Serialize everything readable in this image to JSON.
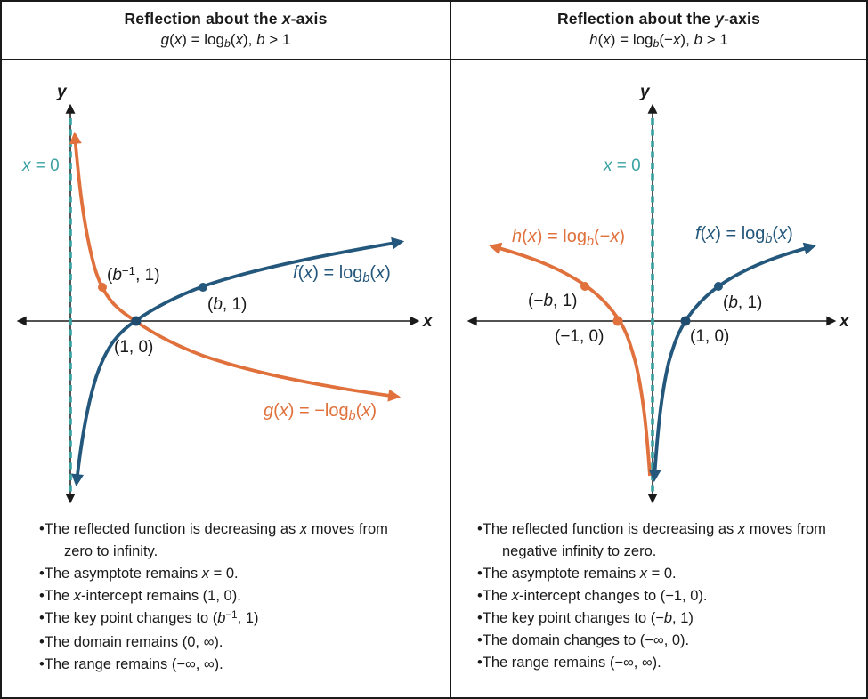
{
  "colors": {
    "blue": "#24577C",
    "orange": "#E0713C",
    "teal": "#3BA2A2",
    "axis": "#1A1A1A"
  },
  "left_panel": {
    "title": [
      {
        "t": "Reflection about the "
      },
      {
        "t": "x",
        "i": 1
      },
      {
        "t": "-axis"
      }
    ],
    "subtitle": [
      {
        "t": "g",
        "i": 1
      },
      {
        "t": "("
      },
      {
        "t": "x",
        "i": 1
      },
      {
        "t": ") = log"
      },
      {
        "t": "b",
        "i": 1,
        "v": "sub"
      },
      {
        "t": "("
      },
      {
        "t": "x",
        "i": 1
      },
      {
        "t": "), "
      },
      {
        "t": "b",
        "i": 1
      },
      {
        "t": " > 1"
      }
    ],
    "graph": {
      "y_axis_label": "y",
      "x_axis_label": "x",
      "asymptote_label": [
        {
          "t": "x",
          "i": 1
        },
        {
          "t": " = 0"
        }
      ],
      "f_label": [
        {
          "t": "f",
          "i": 1
        },
        {
          "t": "("
        },
        {
          "t": "x",
          "i": 1
        },
        {
          "t": ") = log"
        },
        {
          "t": "b",
          "i": 1,
          "v": "sub"
        },
        {
          "t": "("
        },
        {
          "t": "x",
          "i": 1
        },
        {
          "t": ")"
        }
      ],
      "g_label": [
        {
          "t": "g",
          "i": 1
        },
        {
          "t": "("
        },
        {
          "t": "x",
          "i": 1
        },
        {
          "t": ") = −log"
        },
        {
          "t": "b",
          "i": 1,
          "v": "sub"
        },
        {
          "t": "("
        },
        {
          "t": "x",
          "i": 1
        },
        {
          "t": ")"
        }
      ],
      "point_b_inverse": [
        {
          "t": "("
        },
        {
          "t": "b",
          "i": 1
        },
        {
          "t": "−1",
          "v": "sup"
        },
        {
          "t": ", 1)"
        }
      ],
      "point_b_one": [
        {
          "t": "("
        },
        {
          "t": "b",
          "i": 1
        },
        {
          "t": ", 1)"
        }
      ],
      "point_one_zero": [
        {
          "t": "(1, 0)"
        }
      ]
    },
    "bullets": [
      [
        {
          "t": "•The reflected function is decreasing as "
        },
        {
          "t": "x",
          "i": 1
        },
        {
          "t": " moves from zero to infinity."
        }
      ],
      [
        {
          "t": "•The asymptote remains "
        },
        {
          "t": "x",
          "i": 1
        },
        {
          "t": " = 0."
        }
      ],
      [
        {
          "t": "•The "
        },
        {
          "t": "x",
          "i": 1
        },
        {
          "t": "-intercept remains (1, 0)."
        }
      ],
      [
        {
          "t": "•The key point changes to ("
        },
        {
          "t": "b",
          "i": 1
        },
        {
          "t": "−1",
          "v": "sup"
        },
        {
          "t": ", 1)"
        }
      ],
      [
        {
          "t": "•The domain remains (0, ∞)."
        }
      ],
      [
        {
          "t": "•The range remains (−∞, ∞)."
        }
      ]
    ]
  },
  "right_panel": {
    "title": [
      {
        "t": "Reflection about the "
      },
      {
        "t": "y",
        "i": 1
      },
      {
        "t": "-axis"
      }
    ],
    "subtitle": [
      {
        "t": "h",
        "i": 1
      },
      {
        "t": "("
      },
      {
        "t": "x",
        "i": 1
      },
      {
        "t": ") = log"
      },
      {
        "t": "b",
        "i": 1,
        "v": "sub"
      },
      {
        "t": "(−"
      },
      {
        "t": "x",
        "i": 1
      },
      {
        "t": "), "
      },
      {
        "t": "b",
        "i": 1
      },
      {
        "t": " > 1"
      }
    ],
    "graph": {
      "y_axis_label": "y",
      "x_axis_label": "x",
      "asymptote_label": [
        {
          "t": "x",
          "i": 1
        },
        {
          "t": " = 0"
        }
      ],
      "h_label": [
        {
          "t": "h",
          "i": 1
        },
        {
          "t": "("
        },
        {
          "t": "x",
          "i": 1
        },
        {
          "t": ") = log"
        },
        {
          "t": "b",
          "i": 1,
          "v": "sub"
        },
        {
          "t": "(−"
        },
        {
          "t": "x",
          "i": 1
        },
        {
          "t": ")"
        }
      ],
      "f_label": [
        {
          "t": "f",
          "i": 1
        },
        {
          "t": "("
        },
        {
          "t": "x",
          "i": 1
        },
        {
          "t": ") = log"
        },
        {
          "t": "b",
          "i": 1,
          "v": "sub"
        },
        {
          "t": "("
        },
        {
          "t": "x",
          "i": 1
        },
        {
          "t": ")"
        }
      ],
      "point_neg_b_one": [
        {
          "t": "(−"
        },
        {
          "t": "b",
          "i": 1
        },
        {
          "t": ", 1)"
        }
      ],
      "point_b_one": [
        {
          "t": "("
        },
        {
          "t": "b",
          "i": 1
        },
        {
          "t": ", 1)"
        }
      ],
      "point_neg_one_zero": [
        {
          "t": "(−1, 0)"
        }
      ],
      "point_one_zero": [
        {
          "t": "(1, 0)"
        }
      ]
    },
    "bullets": [
      [
        {
          "t": "•The reflected function is decreasing as "
        },
        {
          "t": "x",
          "i": 1
        },
        {
          "t": " moves from  negative infinity to zero."
        }
      ],
      [
        {
          "t": "•The asymptote remains "
        },
        {
          "t": "x",
          "i": 1
        },
        {
          "t": " = 0."
        }
      ],
      [
        {
          "t": "•The "
        },
        {
          "t": "x",
          "i": 1
        },
        {
          "t": "-intercept changes to (−1, 0)."
        }
      ],
      [
        {
          "t": "•The key point changes to (−"
        },
        {
          "t": "b",
          "i": 1
        },
        {
          "t": ", 1)"
        }
      ],
      [
        {
          "t": "•The domain changes to (−∞, 0)."
        }
      ],
      [
        {
          "t": "•The range remains (−∞, ∞)."
        }
      ]
    ]
  }
}
